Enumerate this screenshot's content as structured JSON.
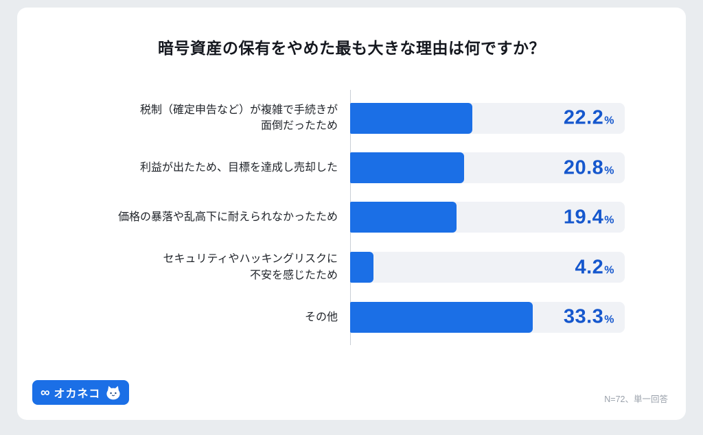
{
  "page": {
    "title": "暗号資産の保有をやめた最も大きな理由は何ですか？",
    "footer_note": "N=72、単一回答",
    "logo": {
      "text": "オカネコ",
      "icon": "infinity-glasses-icon",
      "icon_glyph": "∞",
      "mascot": "cat-mascot"
    }
  },
  "chart_data": {
    "type": "bar",
    "orientation": "horizontal",
    "title": "暗号資産の保有をやめた最も大きな理由は何ですか？",
    "categories": [
      "税制（確定申告など）が複雑で手続きが\n面倒だったため",
      "利益が出たため、目標を達成し売却した",
      "価格の暴落や乱高下に耐えられなかったため",
      "セキュリティやハッキングリスクに\n不安を感じたため",
      "その他"
    ],
    "values": [
      22.2,
      20.8,
      19.4,
      4.2,
      33.3
    ],
    "value_labels": [
      "22.2",
      "20.8",
      "19.4",
      "4.2",
      "33.3"
    ],
    "value_suffix": "%",
    "xlabel": "",
    "ylabel": "",
    "xlim": [
      0,
      50
    ],
    "grid": false,
    "legend": false,
    "note": "N=72、単一回答",
    "colors": {
      "bar": "#1b6fe6",
      "track": "#f0f2f6",
      "value_text": "#1557cd",
      "axis": "#c9ced6"
    }
  }
}
